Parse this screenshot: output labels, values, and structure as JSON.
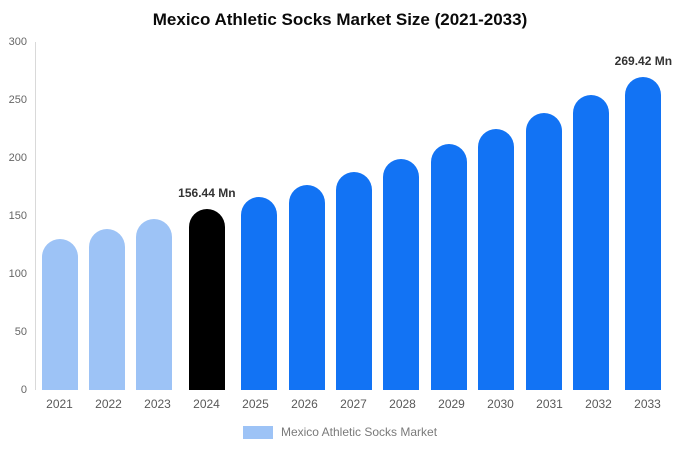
{
  "title": "Mexico Athletic Socks Market Size (2021-2033)",
  "colors": {
    "light_blue": "#9DC3F6",
    "blue": "#1273F4",
    "black": "#000000"
  },
  "legend": {
    "label": "Mexico Athletic Socks Market",
    "swatch_color": "#9DC3F6"
  },
  "chart_data": {
    "type": "bar",
    "title": "Mexico Athletic Socks Market Size (2021-2033)",
    "unit": "Mn",
    "categories": [
      "2021",
      "2022",
      "2023",
      "2024",
      "2025",
      "2026",
      "2027",
      "2028",
      "2029",
      "2030",
      "2031",
      "2032",
      "2033"
    ],
    "values": [
      130.4,
      138.6,
      147.2,
      156.44,
      166.2,
      176.6,
      187.6,
      199.4,
      211.9,
      225.1,
      239.2,
      254.2,
      269.42
    ],
    "bar_colors": [
      "light_blue",
      "light_blue",
      "light_blue",
      "black",
      "blue",
      "blue",
      "blue",
      "blue",
      "blue",
      "blue",
      "blue",
      "blue",
      "blue"
    ],
    "annotations": [
      {
        "index": 3,
        "text": "156.44 Mn"
      },
      {
        "index": 12,
        "text": "269.42 Mn"
      }
    ],
    "ylim": [
      0,
      300
    ],
    "yticks": [
      0,
      50,
      100,
      150,
      200,
      250,
      300
    ],
    "xlabel": "",
    "ylabel": "",
    "grid": false,
    "legend_entries": [
      "Mexico Athletic Socks Market"
    ],
    "legend_position": "bottom"
  }
}
